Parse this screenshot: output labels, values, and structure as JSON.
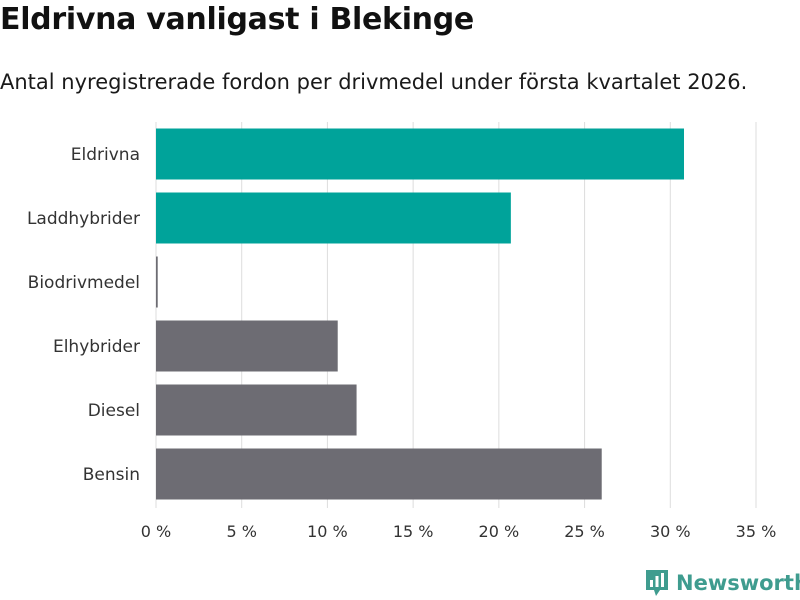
{
  "title": "Eldrivna vanligast i Blekinge",
  "subtitle": "Antal nyregistrerade fordon per drivmedel under första kvartalet 2026.",
  "brand": {
    "name": "Newsworthy",
    "icon": "newsworthy-logo-icon",
    "color": "#3f9c8f"
  },
  "colors": {
    "highlight": "#00a39a",
    "default": "#6d6c73",
    "grid": "#dddddd"
  },
  "chart_data": {
    "type": "bar",
    "orientation": "horizontal",
    "categories": [
      "Eldrivna",
      "Laddhybrider",
      "Biodrivmedel",
      "Elhybrider",
      "Diesel",
      "Bensin"
    ],
    "values": [
      30.8,
      20.7,
      0.1,
      10.6,
      11.7,
      26.0
    ],
    "highlighted": [
      true,
      true,
      false,
      false,
      false,
      false
    ],
    "xlim": [
      0,
      35
    ],
    "xticks": [
      0,
      5,
      10,
      15,
      20,
      25,
      30,
      35
    ],
    "xtick_labels": [
      "0 %",
      "5 %",
      "10 %",
      "15 %",
      "20 %",
      "25 %",
      "30 %",
      "35 %"
    ],
    "grid": "vertical",
    "title": "Eldrivna vanligast i Blekinge",
    "xlabel": "",
    "ylabel": ""
  }
}
